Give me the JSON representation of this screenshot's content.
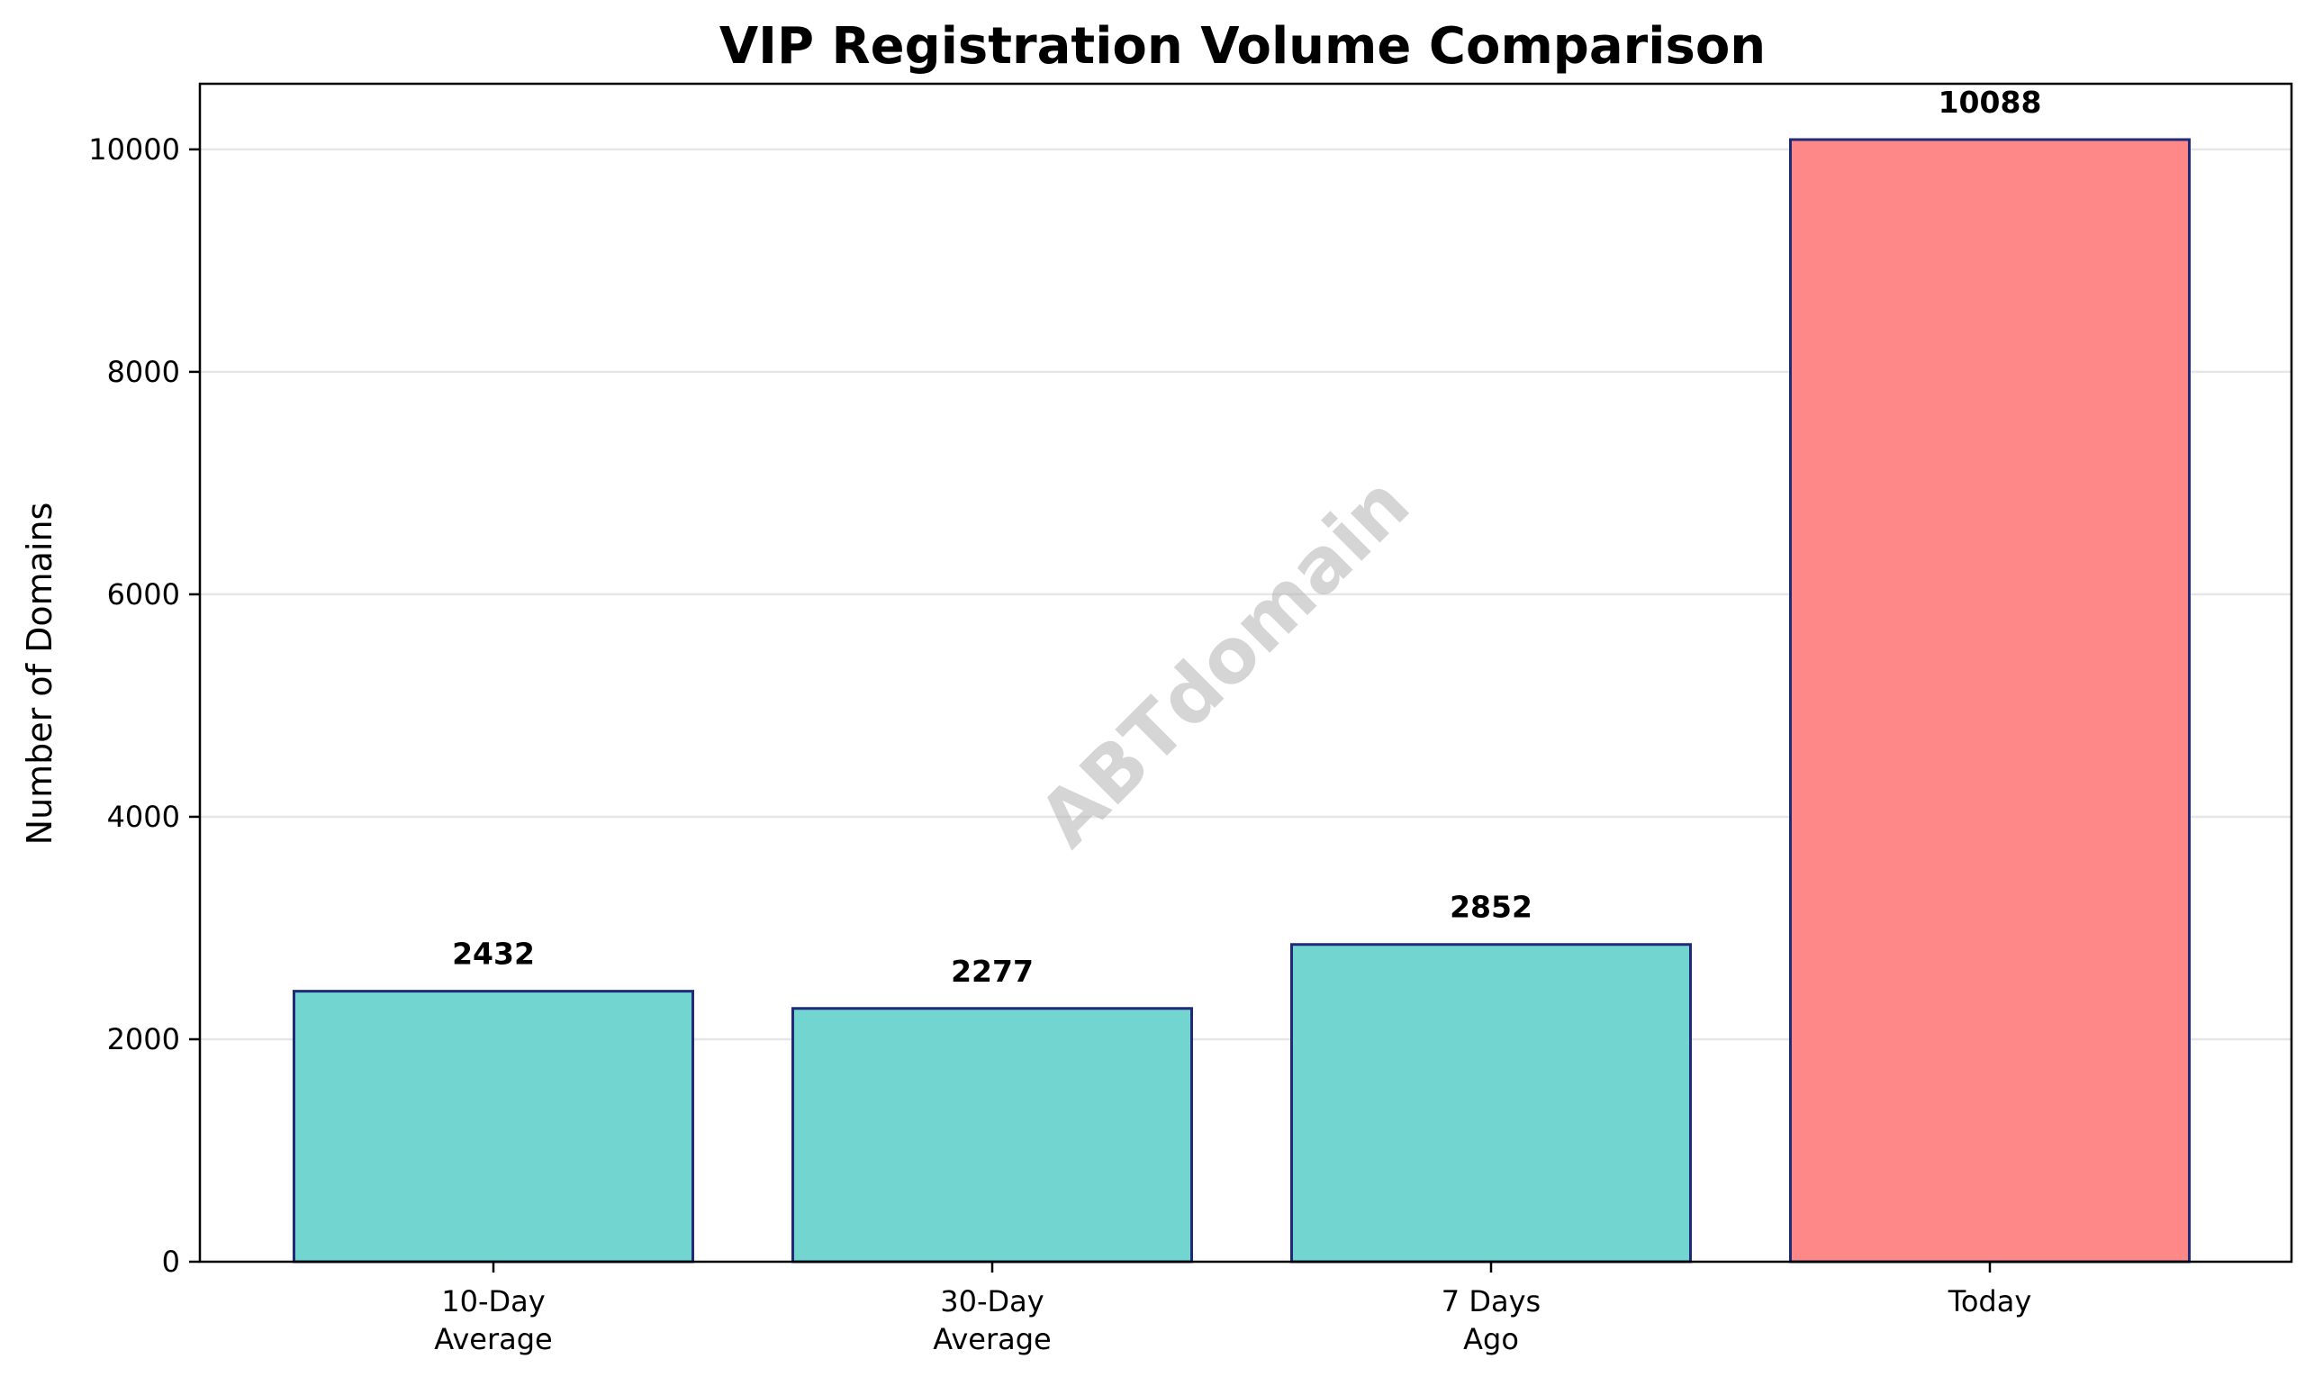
{
  "chart_data": {
    "type": "bar",
    "title": "VIP Registration Volume Comparison",
    "xlabel": "",
    "ylabel": "Number of Domains",
    "categories": [
      [
        "10-Day",
        "Average"
      ],
      [
        "30-Day",
        "Average"
      ],
      [
        "7 Days",
        "Ago"
      ],
      [
        "Today"
      ]
    ],
    "values": [
      2432,
      2277,
      2852,
      10088
    ],
    "bar_colors": [
      "#72d5cf",
      "#72d5cf",
      "#72d5cf",
      "#fe8888"
    ],
    "bar_edge_color": "#1f2a7a",
    "grid_color": "#e6e6e6",
    "ylim": [
      0,
      10590
    ],
    "yticks": [
      0,
      2000,
      4000,
      6000,
      8000,
      10000
    ],
    "grid": "horizontal",
    "watermark": "ABTdomain"
  }
}
